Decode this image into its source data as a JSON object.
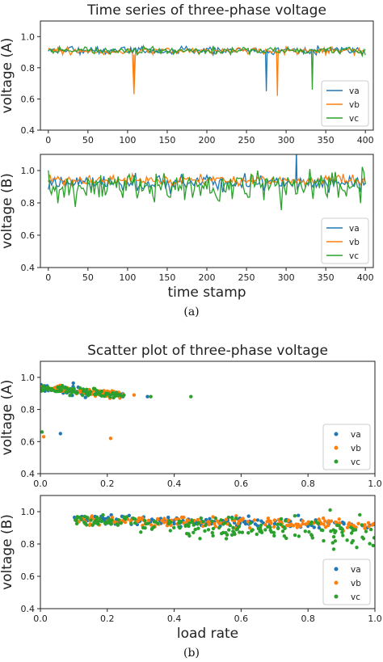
{
  "colors": {
    "va": "#1f77b4",
    "vb": "#ff7f0e",
    "vc": "#2ca02c",
    "axis": "#222222"
  },
  "captions": {
    "a": "(a)",
    "b": "(b)"
  },
  "chart_data": [
    {
      "type": "line",
      "id": "ts-a",
      "title": "Time series of three-phase voltage",
      "xlabel": "",
      "ylabel": "voltage (A)",
      "xlim": [
        -10,
        410
      ],
      "ylim": [
        0.4,
        1.1
      ],
      "xticks": [
        "0",
        "50",
        "100",
        "150",
        "200",
        "250",
        "300",
        "350",
        "400"
      ],
      "xtick_values": [
        0,
        50,
        100,
        150,
        200,
        250,
        300,
        350,
        400
      ],
      "yticks": [
        "0.4",
        "0.6",
        "0.8",
        "1.0"
      ],
      "ytick_values": [
        0.4,
        0.6,
        0.8,
        1.0
      ],
      "legend": "lower-right",
      "series": [
        {
          "name": "va",
          "baseline": 0.91,
          "noise": 0.012,
          "dips": [
            [
              275,
              0.65
            ]
          ]
        },
        {
          "name": "vb",
          "baseline": 0.91,
          "noise": 0.012,
          "dips": [
            [
              108,
              0.63
            ],
            [
              289,
              0.62
            ]
          ]
        },
        {
          "name": "vc",
          "baseline": 0.91,
          "noise": 0.012,
          "dips": [
            [
              333,
              0.66
            ]
          ]
        }
      ]
    },
    {
      "type": "line",
      "id": "ts-b",
      "title": "",
      "xlabel": "time stamp",
      "ylabel": "voltage (B)",
      "xlim": [
        -10,
        410
      ],
      "ylim": [
        0.4,
        1.1
      ],
      "xticks": [
        "0",
        "50",
        "100",
        "150",
        "200",
        "250",
        "300",
        "350",
        "400"
      ],
      "xtick_values": [
        0,
        50,
        100,
        150,
        200,
        250,
        300,
        350,
        400
      ],
      "yticks": [
        "0.4",
        "0.6",
        "0.8",
        "1.0"
      ],
      "ytick_values": [
        0.4,
        0.6,
        0.8,
        1.0
      ],
      "legend": "lower-right",
      "series": [
        {
          "name": "va",
          "baseline": 0.93,
          "noise": 0.02,
          "dips": [],
          "spikes": [
            [
              313,
              1.12
            ]
          ]
        },
        {
          "name": "vb",
          "baseline": 0.94,
          "noise": 0.015,
          "dips": [],
          "spikes": []
        },
        {
          "name": "vc",
          "baseline": 0.91,
          "noise": 0.04,
          "dips": [],
          "spikes": []
        }
      ]
    },
    {
      "type": "scatter",
      "id": "sc-a",
      "title": "Scatter plot of three-phase voltage",
      "xlabel": "",
      "ylabel": "voltage (A)",
      "xlim": [
        0.0,
        1.0
      ],
      "ylim": [
        0.4,
        1.1
      ],
      "xticks": [
        "0.0",
        "0.2",
        "0.4",
        "0.6",
        "0.8",
        "1.0"
      ],
      "xtick_values": [
        0.0,
        0.2,
        0.4,
        0.6,
        0.8,
        1.0
      ],
      "yticks": [
        "0.4",
        "0.6",
        "0.8",
        "1.0"
      ],
      "ytick_values": [
        0.4,
        0.6,
        0.8,
        1.0
      ],
      "legend": "lower-right",
      "series": [
        {
          "name": "va",
          "cluster": {
            "xrange": [
              0.0,
              0.25
            ],
            "y_at_x0": 0.93,
            "y_at_x1": 0.89,
            "spread": 0.012,
            "count": 70
          },
          "points": [
            [
              0.06,
              0.65
            ],
            [
              0.32,
              0.88
            ]
          ]
        },
        {
          "name": "vb",
          "cluster": {
            "xrange": [
              0.0,
              0.25
            ],
            "y_at_x0": 0.93,
            "y_at_x1": 0.89,
            "spread": 0.012,
            "count": 70
          },
          "points": [
            [
              0.01,
              0.63
            ],
            [
              0.21,
              0.62
            ],
            [
              0.28,
              0.89
            ]
          ]
        },
        {
          "name": "vc",
          "cluster": {
            "xrange": [
              0.0,
              0.25
            ],
            "y_at_x0": 0.93,
            "y_at_x1": 0.89,
            "spread": 0.012,
            "count": 90
          },
          "points": [
            [
              0.005,
              0.66
            ],
            [
              0.45,
              0.88
            ],
            [
              0.33,
              0.88
            ]
          ]
        }
      ]
    },
    {
      "type": "scatter",
      "id": "sc-b",
      "title": "",
      "xlabel": "load rate",
      "ylabel": "voltage (B)",
      "xlim": [
        0.0,
        1.0
      ],
      "ylim": [
        0.4,
        1.1
      ],
      "xticks": [
        "0.0",
        "0.2",
        "0.4",
        "0.6",
        "0.8",
        "1.0"
      ],
      "xtick_values": [
        0.0,
        0.2,
        0.4,
        0.6,
        0.8,
        1.0
      ],
      "yticks": [
        "0.4",
        "0.6",
        "0.8",
        "1.0"
      ],
      "ytick_values": [
        0.4,
        0.6,
        0.8,
        1.0
      ],
      "legend": "lower-right",
      "series": [
        {
          "name": "va",
          "cluster": {
            "xrange": [
              0.1,
              1.0
            ],
            "y_at_x0": 0.95,
            "y_at_x1": 0.92,
            "spread": 0.015,
            "count": 160
          },
          "points": []
        },
        {
          "name": "vb",
          "cluster": {
            "xrange": [
              0.1,
              1.0
            ],
            "y_at_x0": 0.95,
            "y_at_x1": 0.92,
            "spread": 0.015,
            "count": 180
          },
          "points": []
        },
        {
          "name": "vc",
          "cluster": {
            "xrange": [
              0.1,
              1.0
            ],
            "y_at_x0": 0.95,
            "y_at_x1": 0.86,
            "spread": 0.035,
            "count": 200
          },
          "points": []
        }
      ]
    }
  ]
}
